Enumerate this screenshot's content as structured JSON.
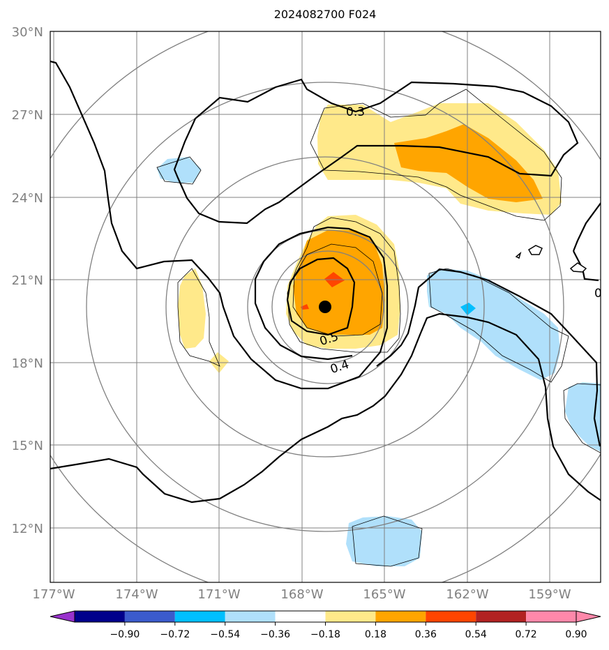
{
  "title": "2024082700 F024",
  "lat_labels": [
    "30°N",
    "27°N",
    "24°N",
    "21°N",
    "18°N",
    "15°N",
    "12°N"
  ],
  "lon_labels": [
    "177°W",
    "174°W",
    "171°W",
    "168°W",
    "165°W",
    "162°W",
    "159°W"
  ],
  "contour_labels": [
    "0.3",
    "0.5",
    "0.4",
    "0"
  ],
  "colorbar": {
    "tick_labels": [
      "−0.90",
      "−0.72",
      "−0.54",
      "−0.36",
      "−0.18",
      "0.18",
      "0.36",
      "0.54",
      "0.72",
      "0.90"
    ],
    "colors": [
      "#9932cc",
      "#00008b",
      "#3b5bcc",
      "#00bfff",
      "#b0e0fb",
      "#ffffff",
      "#ffe98a",
      "#ffa500",
      "#ff4500",
      "#b22222",
      "#ff88aa"
    ]
  },
  "colors": {
    "grid": "#808080",
    "positive_light": "#ffe98a",
    "positive_mid": "#ffa500",
    "positive_high": "#ff4500",
    "negative_light": "#b0e0fb",
    "negative_mid": "#00bfff",
    "storm_center": "#000000"
  }
}
